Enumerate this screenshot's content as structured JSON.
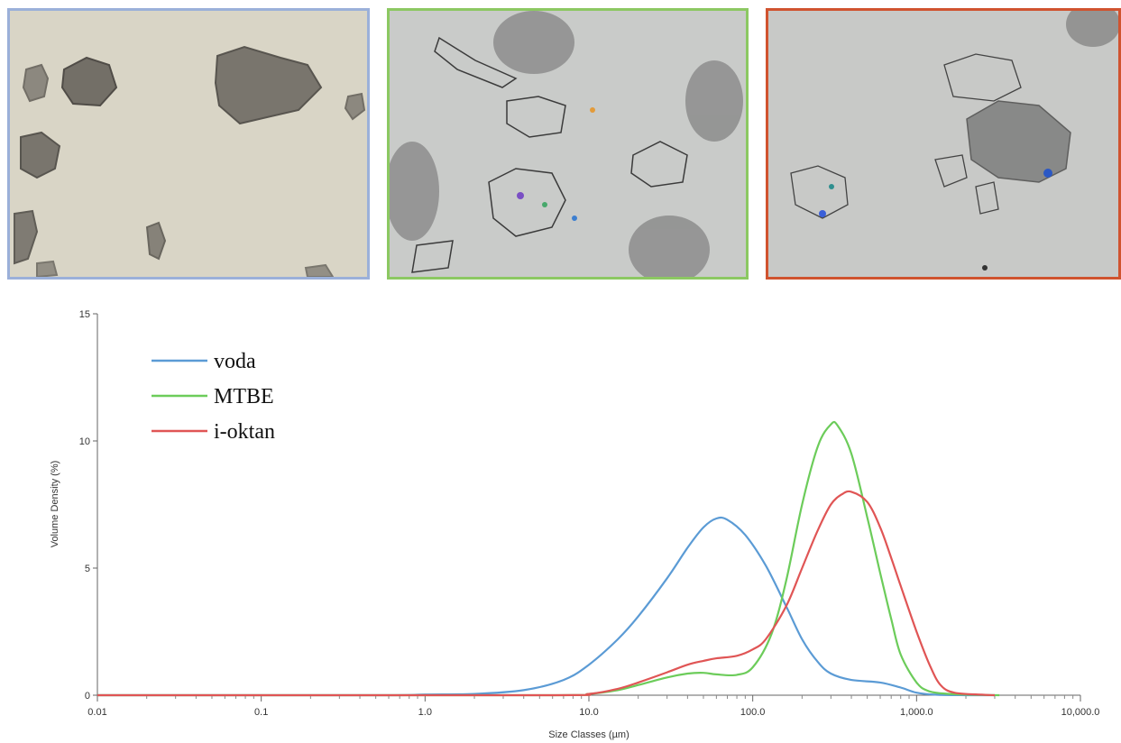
{
  "images": [
    {
      "border_color": "#9bb0d9",
      "background": "#d9d5c6",
      "particle_color": "#5a5650"
    },
    {
      "border_color": "#8cc862",
      "background": "#c9cbc9",
      "particle_color": "#6b6b6b"
    },
    {
      "border_color": "#d0532f",
      "background": "#c8c9c7",
      "particle_color": "#6e6e6e"
    }
  ],
  "chart_data": {
    "type": "line",
    "xlabel": "Size Classes (µm)",
    "ylabel": "Volume Density (%)",
    "xscale": "log",
    "xlim": [
      0.01,
      10000
    ],
    "ylim": [
      0,
      15
    ],
    "x_ticks": [
      0.01,
      0.1,
      1,
      10,
      100,
      1000,
      10000
    ],
    "x_tick_labels": [
      "0.01",
      "0.1",
      "1.0",
      "10.0",
      "100.0",
      "1,000.0",
      "10,000.0"
    ],
    "y_ticks": [
      0,
      5,
      10,
      15
    ],
    "y_tick_labels": [
      "0",
      "5",
      "10",
      "15"
    ],
    "grid": false,
    "legend_position": "top-left",
    "series": [
      {
        "name": "voda",
        "color": "#5b9bd5",
        "points": [
          [
            0.01,
            0
          ],
          [
            0.5,
            0
          ],
          [
            1,
            0.03
          ],
          [
            2,
            0.05
          ],
          [
            4,
            0.2
          ],
          [
            7,
            0.6
          ],
          [
            10,
            1.2
          ],
          [
            15,
            2.2
          ],
          [
            20,
            3.1
          ],
          [
            30,
            4.6
          ],
          [
            40,
            5.8
          ],
          [
            50,
            6.6
          ],
          [
            60,
            6.95
          ],
          [
            70,
            6.9
          ],
          [
            90,
            6.3
          ],
          [
            120,
            5.1
          ],
          [
            160,
            3.5
          ],
          [
            200,
            2.2
          ],
          [
            250,
            1.3
          ],
          [
            300,
            0.85
          ],
          [
            400,
            0.6
          ],
          [
            600,
            0.5
          ],
          [
            800,
            0.3
          ],
          [
            1000,
            0.1
          ],
          [
            1300,
            0.02
          ],
          [
            2000,
            0
          ],
          [
            3000,
            0
          ]
        ]
      },
      {
        "name": "MTBE",
        "color": "#6ccc5a",
        "points": [
          [
            0.01,
            0
          ],
          [
            5,
            0
          ],
          [
            10,
            0.05
          ],
          [
            15,
            0.2
          ],
          [
            20,
            0.4
          ],
          [
            30,
            0.7
          ],
          [
            40,
            0.85
          ],
          [
            50,
            0.88
          ],
          [
            60,
            0.82
          ],
          [
            80,
            0.8
          ],
          [
            100,
            1.1
          ],
          [
            130,
            2.4
          ],
          [
            160,
            4.5
          ],
          [
            200,
            7.5
          ],
          [
            250,
            9.8
          ],
          [
            300,
            10.65
          ],
          [
            330,
            10.6
          ],
          [
            400,
            9.5
          ],
          [
            500,
            7
          ],
          [
            600,
            4.8
          ],
          [
            700,
            3
          ],
          [
            800,
            1.6
          ],
          [
            1000,
            0.5
          ],
          [
            1200,
            0.15
          ],
          [
            1600,
            0.05
          ],
          [
            2500,
            0.01
          ],
          [
            3200,
            0
          ]
        ]
      },
      {
        "name": "i-oktan",
        "color": "#e05555",
        "points": [
          [
            0.01,
            0
          ],
          [
            5,
            0
          ],
          [
            10,
            0.05
          ],
          [
            15,
            0.25
          ],
          [
            20,
            0.5
          ],
          [
            30,
            0.9
          ],
          [
            40,
            1.2
          ],
          [
            50,
            1.35
          ],
          [
            60,
            1.45
          ],
          [
            80,
            1.55
          ],
          [
            100,
            1.8
          ],
          [
            120,
            2.2
          ],
          [
            160,
            3.5
          ],
          [
            200,
            5
          ],
          [
            250,
            6.5
          ],
          [
            300,
            7.5
          ],
          [
            350,
            7.9
          ],
          [
            400,
            8
          ],
          [
            500,
            7.6
          ],
          [
            600,
            6.6
          ],
          [
            700,
            5.4
          ],
          [
            800,
            4.3
          ],
          [
            1000,
            2.5
          ],
          [
            1200,
            1.2
          ],
          [
            1400,
            0.4
          ],
          [
            1700,
            0.1
          ],
          [
            2500,
            0.02
          ],
          [
            3000,
            0
          ]
        ]
      }
    ]
  }
}
